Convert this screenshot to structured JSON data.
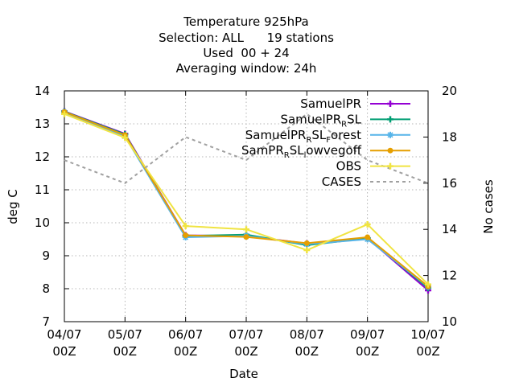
{
  "chart_data": {
    "type": "line",
    "title_lines": [
      "Temperature 925hPa",
      "Selection: ALL      19 stations",
      "Used  00 + 24",
      "Averaging window: 24h"
    ],
    "xlabel": "Date",
    "ylabel": "deg C",
    "y2label": "No cases",
    "x": [
      {
        "line1": "04/07",
        "line2": "00Z"
      },
      {
        "line1": "05/07",
        "line2": "00Z"
      },
      {
        "line1": "06/07",
        "line2": "00Z"
      },
      {
        "line1": "07/07",
        "line2": "00Z"
      },
      {
        "line1": "08/07",
        "line2": "00Z"
      },
      {
        "line1": "09/07",
        "line2": "00Z"
      },
      {
        "line1": "10/07",
        "line2": "00Z"
      }
    ],
    "ylim": [
      7,
      14
    ],
    "yticks": [
      7,
      8,
      9,
      10,
      11,
      12,
      13,
      14
    ],
    "y2lim": [
      10,
      20
    ],
    "y2ticks": [
      10,
      12,
      14,
      16,
      18,
      20
    ],
    "grid": true,
    "legend_position": "top-right",
    "series": [
      {
        "name": "SamuelPR",
        "legend": {
          "main": "SamuelPR"
        },
        "color": "#9400d3",
        "marker": "plus",
        "axis": "y1",
        "dash": false,
        "values": [
          13.38,
          12.7,
          9.62,
          9.6,
          9.37,
          9.53,
          7.95
        ]
      },
      {
        "name": "SamuelPR_R SL",
        "legend": {
          "main": "SamuelPR",
          "sub": "R",
          "rest": "SL"
        },
        "color": "#009e73",
        "marker": "plus",
        "axis": "y1",
        "dash": false,
        "values": [
          13.37,
          12.68,
          9.6,
          9.64,
          9.32,
          9.53,
          8.02
        ]
      },
      {
        "name": "SamuelPR_R SL_Forest",
        "legend": {
          "main": "SamuelPR",
          "sub": "R",
          "rest": "SL",
          "sub2": "F",
          "rest2": "orest"
        },
        "color": "#56b4e9",
        "marker": "star",
        "axis": "y1",
        "dash": false,
        "values": [
          13.35,
          12.62,
          9.56,
          9.6,
          9.35,
          9.5,
          8.06
        ]
      },
      {
        "name": "SamPR_R SL_lowvegoff",
        "legend": {
          "main": "SamPR",
          "sub": "R",
          "rest": "SL",
          "sub2": "l",
          "rest2": "owvegoff"
        },
        "color": "#e69f00",
        "marker": "dot",
        "axis": "y1",
        "dash": false,
        "values": [
          13.36,
          12.66,
          9.62,
          9.57,
          9.38,
          9.56,
          8.07
        ]
      },
      {
        "name": "OBS",
        "legend": {
          "main": "OBS"
        },
        "color": "#f0e442",
        "marker": "plus",
        "axis": "y1",
        "dash": false,
        "values": [
          13.3,
          12.58,
          9.9,
          9.8,
          9.17,
          9.95,
          8.13
        ]
      },
      {
        "name": "CASES",
        "legend": {
          "main": "CASES"
        },
        "color": "#a0a0a0",
        "marker": "none",
        "axis": "y2",
        "dash": true,
        "values": [
          17,
          16,
          18,
          17,
          19,
          17,
          16
        ]
      }
    ]
  }
}
